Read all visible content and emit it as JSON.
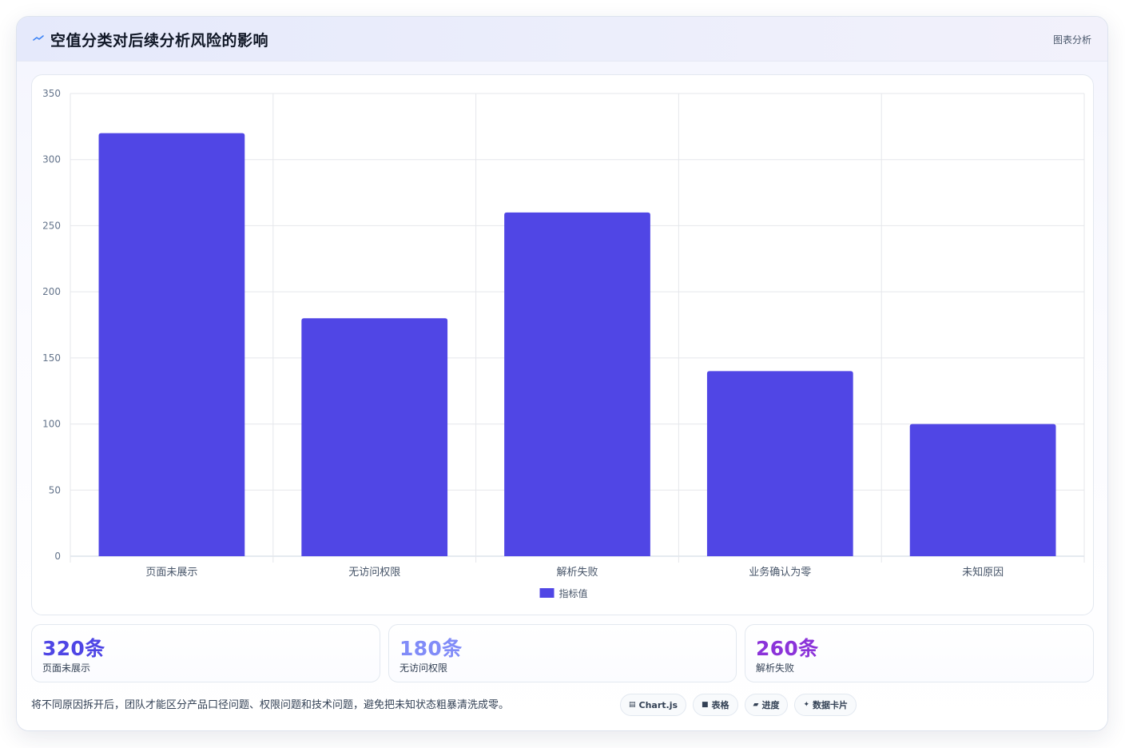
{
  "header": {
    "title": "空值分类对后续分析风险的影响",
    "tag": "图表分析",
    "icon": "trend-line-icon",
    "icon_color": "#3b82f6"
  },
  "chart_data": {
    "type": "bar",
    "categories": [
      "页面未展示",
      "无访问权限",
      "解析失败",
      "业务确认为零",
      "未知原因"
    ],
    "series": [
      {
        "name": "指标值",
        "values": [
          320,
          180,
          260,
          140,
          100
        ],
        "color": "#5046e5"
      }
    ],
    "ylim": [
      0,
      350
    ],
    "yticks": [
      0,
      50,
      100,
      150,
      200,
      250,
      300,
      350
    ],
    "grid": true,
    "legend_position": "bottom"
  },
  "stats": [
    {
      "value": "320条",
      "label": "页面未展示",
      "color": "#4f46e5"
    },
    {
      "value": "180条",
      "label": "无访问权限",
      "color": "#818cf8"
    },
    {
      "value": "260条",
      "label": "解析失败",
      "color": "#8b33d9"
    }
  ],
  "footer": {
    "note": "将不同原因拆开后，团队才能区分产品口径问题、权限问题和技术问题，避免把未知状态粗暴清洗成零。"
  },
  "chips": [
    {
      "icon": "chart-icon",
      "label": "Chart.js"
    },
    {
      "icon": "table-icon",
      "label": "表格"
    },
    {
      "icon": "progress-icon",
      "label": "进度"
    },
    {
      "icon": "sparkle-icon",
      "label": "数据卡片"
    }
  ]
}
